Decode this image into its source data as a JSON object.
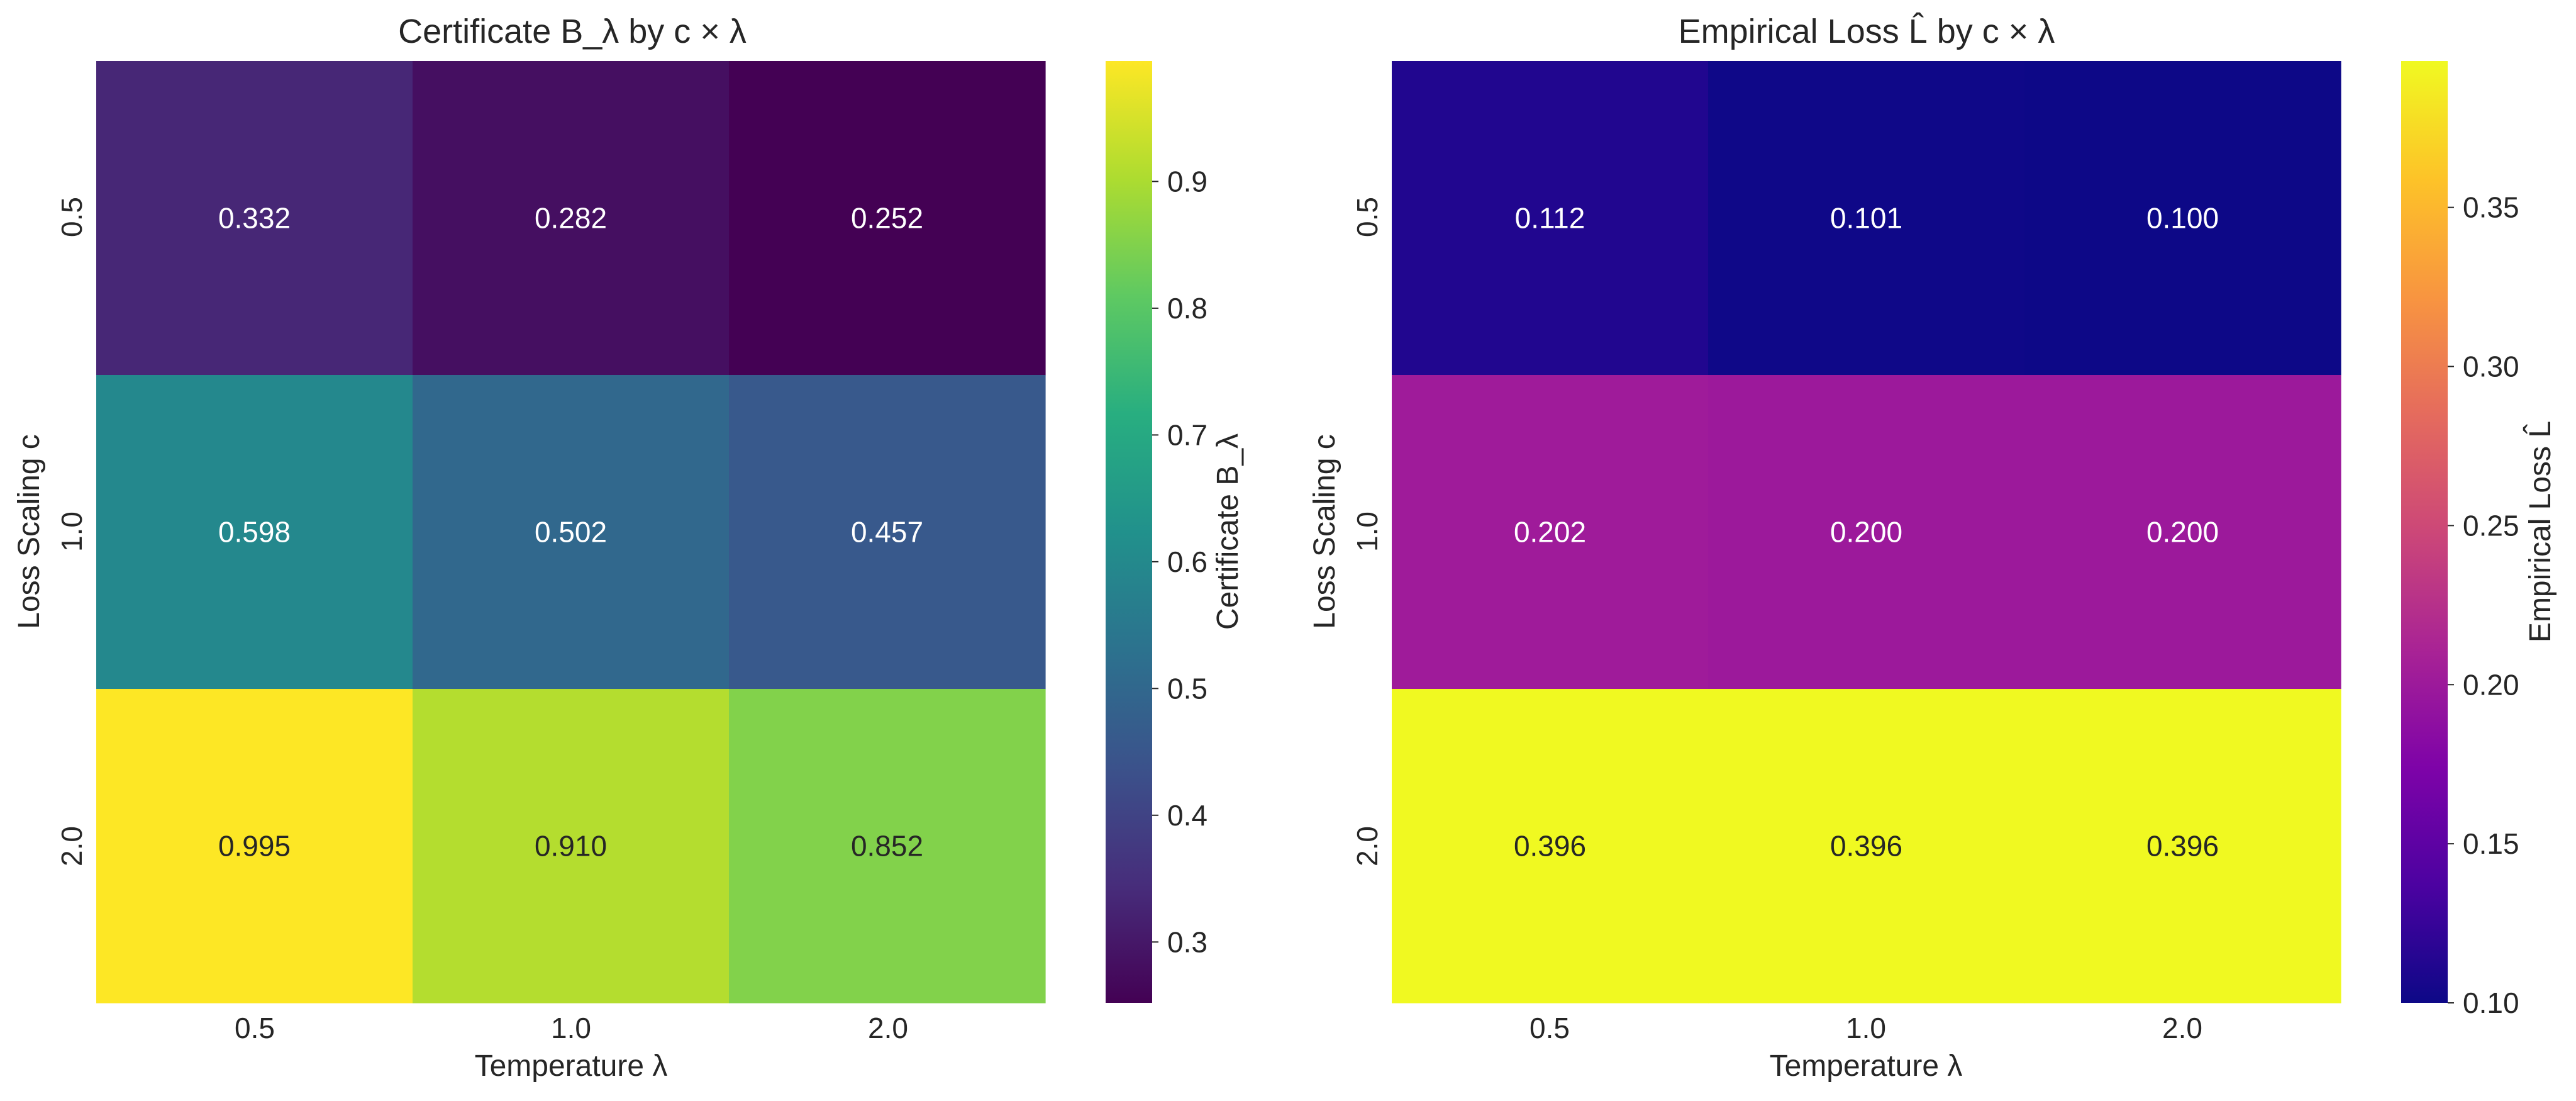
{
  "chart_data": [
    {
      "type": "heatmap",
      "title": "Certificate B_λ by c × λ",
      "xlabel": "Temperature λ",
      "ylabel": "Loss Scaling c",
      "x_categories": [
        "0.5",
        "1.0",
        "2.0"
      ],
      "y_categories": [
        "0.5",
        "1.0",
        "2.0"
      ],
      "values": [
        [
          0.332,
          0.282,
          0.252
        ],
        [
          0.598,
          0.502,
          0.457
        ],
        [
          0.995,
          0.91,
          0.852
        ]
      ],
      "cell_labels": [
        [
          "0.332",
          "0.282",
          "0.252"
        ],
        [
          "0.598",
          "0.502",
          "0.457"
        ],
        [
          "0.995",
          "0.910",
          "0.852"
        ]
      ],
      "colormap": "viridis",
      "colorbar": {
        "label": "Certificate B_λ",
        "range": [
          0.252,
          0.995
        ],
        "ticks": [
          0.3,
          0.4,
          0.5,
          0.6,
          0.7,
          0.8,
          0.9
        ],
        "tick_labels": [
          "0.3",
          "0.4",
          "0.5",
          "0.6",
          "0.7",
          "0.8",
          "0.9"
        ]
      }
    },
    {
      "type": "heatmap",
      "title": "Empirical Loss L̂ by c × λ",
      "xlabel": "Temperature λ",
      "ylabel": "Loss Scaling c",
      "x_categories": [
        "0.5",
        "1.0",
        "2.0"
      ],
      "y_categories": [
        "0.5",
        "1.0",
        "2.0"
      ],
      "values": [
        [
          0.112,
          0.101,
          0.1
        ],
        [
          0.202,
          0.2,
          0.2
        ],
        [
          0.396,
          0.396,
          0.396
        ]
      ],
      "cell_labels": [
        [
          "0.112",
          "0.101",
          "0.100"
        ],
        [
          "0.202",
          "0.200",
          "0.200"
        ],
        [
          "0.396",
          "0.396",
          "0.396"
        ]
      ],
      "colormap": "plasma",
      "colorbar": {
        "label": "Empirical Loss L̂",
        "range": [
          0.1,
          0.396
        ],
        "ticks": [
          0.1,
          0.15,
          0.2,
          0.25,
          0.3,
          0.35
        ],
        "tick_labels": [
          "0.10",
          "0.15",
          "0.20",
          "0.25",
          "0.30",
          "0.35"
        ]
      }
    }
  ]
}
